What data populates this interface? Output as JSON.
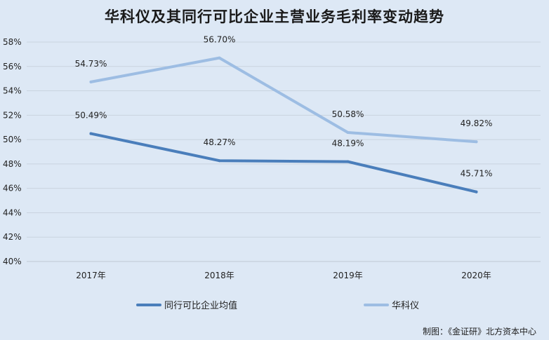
{
  "chart_data": {
    "type": "line",
    "title": "华科仪及其同行可比企业主营业务毛利率变动趋势",
    "categories": [
      "2017年",
      "2018年",
      "2019年",
      "2020年"
    ],
    "ylim": [
      40,
      58
    ],
    "ytick_step": 2,
    "yticks": [
      "40%",
      "42%",
      "44%",
      "46%",
      "48%",
      "50%",
      "52%",
      "54%",
      "56%",
      "58%"
    ],
    "grid": true,
    "legend_position": "bottom",
    "series": [
      {
        "name": "同行可比企业均值",
        "values": [
          50.49,
          48.27,
          48.19,
          45.71
        ],
        "labels": [
          "50.49%",
          "48.27%",
          "48.19%",
          "45.71%"
        ],
        "color": "#4a7ebb"
      },
      {
        "name": "华科仪",
        "values": [
          54.73,
          56.7,
          50.58,
          49.82
        ],
        "labels": [
          "54.73%",
          "56.70%",
          "50.58%",
          "49.82%"
        ],
        "color": "#9dbde3"
      }
    ]
  },
  "source_note": "制图：《金证研》北方资本中心"
}
